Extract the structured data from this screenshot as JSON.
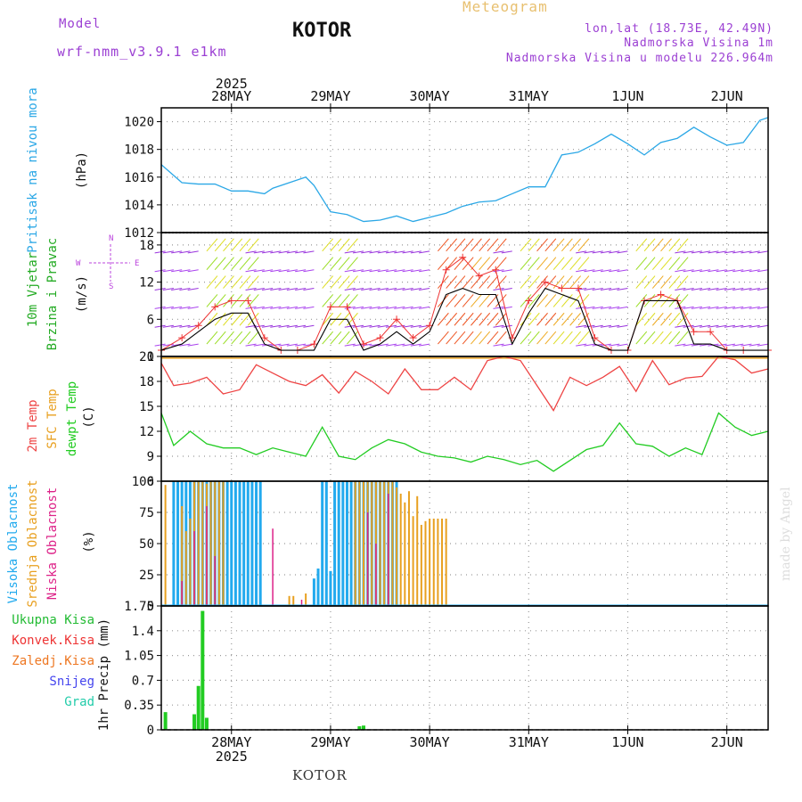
{
  "header": {
    "model_label": "Model",
    "model_name": "wrf-nmm_v3.9.1 e1km",
    "place": "KOTOR",
    "title": "Meteogram",
    "coords": "lon,lat (18.73E, 42.49N)",
    "altitude": "Nadmorska Visina 1m",
    "model_altitude": "Nadmorska Visina u modelu 226.964m"
  },
  "footer": {
    "place": "KOTOR",
    "watermark": "made by Angel"
  },
  "x_axis": {
    "year": "2025",
    "days": [
      "28MAY",
      "29MAY",
      "30MAY",
      "31MAY",
      "1JUN",
      "2JUN"
    ],
    "hours_start_offset": -17,
    "hours_end": 130
  },
  "colors": {
    "pressure": "#2aa7e6",
    "temp": "#ee4444",
    "sfc": "#e8a020",
    "dew": "#22cc22",
    "high": "#22aaee",
    "mid": "#e8a020",
    "low": "#dd2288",
    "precip": "#22cc22",
    "wind_speed": "#000000",
    "gust": "#ee3333",
    "compass": "#bb44dd"
  },
  "panel_labels": {
    "pressure": [
      "Pritisak na nivou mora",
      "(hPa)"
    ],
    "wind": [
      "10m Vjetar",
      "Brzina i Pravac",
      "(m/s)"
    ],
    "compass": [
      "N",
      "W",
      "E",
      "S"
    ],
    "temp": [
      "2m Temp",
      "SFC Temp",
      "dewpt Temp",
      "(C)"
    ],
    "cloud": [
      "Visoka Oblacnost",
      "Srednja Oblacnost",
      "Niska Oblacnost",
      "(%)"
    ],
    "precip_y": "1hr Precip (mm)",
    "precip_legend": [
      "Ukupna Kisa",
      "Konvek.Kisa",
      "Zaledj.Kisa",
      "Snijeg",
      "Grad"
    ]
  },
  "chart_data": [
    {
      "type": "line",
      "name": "pressure",
      "ylim": [
        1012,
        1021
      ],
      "yticks": [
        1012,
        1014,
        1016,
        1018,
        1020
      ],
      "series": [
        {
          "x": [
            -17,
            -12,
            -8,
            -4,
            0,
            4,
            8,
            10,
            14,
            18,
            20,
            24,
            28,
            32,
            36,
            40,
            44,
            48,
            52,
            56,
            60,
            64,
            68,
            72,
            76,
            80,
            84,
            88,
            92,
            96,
            100,
            104,
            108,
            112,
            116,
            120,
            124,
            128,
            130
          ],
          "values": [
            1016.9,
            1015.6,
            1015.5,
            1015.5,
            1015.0,
            1015.0,
            1014.8,
            1015.2,
            1015.6,
            1016.0,
            1015.4,
            1013.5,
            1013.3,
            1012.8,
            1012.9,
            1013.2,
            1012.8,
            1013.1,
            1013.4,
            1013.9,
            1014.2,
            1014.3,
            1014.8,
            1015.3,
            1015.3,
            1017.6,
            1017.8,
            1018.4,
            1019.1,
            1018.4,
            1017.6,
            1018.5,
            1018.8,
            1019.6,
            1018.9,
            1018.3,
            1018.5,
            1020.1,
            1020.3
          ]
        }
      ]
    },
    {
      "type": "line",
      "name": "wind",
      "ylim": [
        0,
        20
      ],
      "yticks": [
        0,
        6,
        12,
        18
      ],
      "series": [
        {
          "name": "speed",
          "x": [
            -17,
            -12,
            -8,
            -4,
            0,
            4,
            8,
            12,
            16,
            20,
            24,
            28,
            32,
            36,
            40,
            44,
            48,
            52,
            56,
            60,
            64,
            68,
            72,
            76,
            80,
            84,
            88,
            92,
            96,
            100,
            104,
            108,
            112,
            116,
            120,
            124,
            130
          ],
          "values": [
            1,
            2,
            4,
            6,
            7,
            7,
            2,
            1,
            1,
            1,
            6,
            6,
            1,
            2,
            4,
            2,
            4,
            10,
            11,
            10,
            10,
            2,
            7,
            11,
            10,
            9,
            2,
            1,
            1,
            9,
            9,
            9,
            2,
            2,
            1,
            1,
            1
          ]
        },
        {
          "name": "gust",
          "x": [
            -17,
            -12,
            -8,
            -4,
            0,
            4,
            8,
            12,
            16,
            20,
            24,
            28,
            32,
            36,
            40,
            44,
            48,
            52,
            56,
            60,
            64,
            68,
            72,
            76,
            80,
            84,
            88,
            92,
            96,
            100,
            104,
            108,
            112,
            116,
            120,
            124,
            130
          ],
          "values": [
            1,
            3,
            5,
            8,
            9,
            9,
            3,
            1,
            1,
            2,
            8,
            8,
            2,
            3,
            6,
            3,
            5,
            14,
            16,
            13,
            14,
            3,
            9,
            12,
            11,
            11,
            3,
            1,
            1,
            9,
            10,
            9,
            4,
            4,
            1,
            1,
            1
          ]
        }
      ]
    },
    {
      "type": "line",
      "name": "temperature",
      "ylim": [
        6,
        21
      ],
      "yticks": [
        6,
        9,
        12,
        15,
        18,
        21
      ],
      "series": [
        {
          "name": "2m",
          "x": [
            -17,
            -14,
            -10,
            -6,
            -2,
            2,
            6,
            10,
            14,
            18,
            22,
            26,
            30,
            34,
            38,
            42,
            46,
            50,
            54,
            58,
            62,
            66,
            70,
            74,
            78,
            82,
            86,
            90,
            94,
            98,
            102,
            106,
            110,
            114,
            118,
            122,
            126,
            130
          ],
          "values": [
            20.2,
            17.5,
            17.8,
            18.5,
            16.5,
            17.0,
            20.0,
            19.0,
            18.0,
            17.5,
            18.8,
            16.6,
            19.2,
            18.0,
            16.5,
            19.5,
            17.0,
            17.0,
            18.5,
            17.0,
            20.5,
            21.0,
            20.5,
            17.5,
            14.5,
            18.5,
            17.5,
            18.5,
            19.8,
            16.8,
            20.5,
            17.6,
            18.4,
            18.6,
            21.0,
            20.6,
            19.0,
            19.5
          ]
        },
        {
          "name": "sfc",
          "x": [
            -17,
            130
          ],
          "values": [
            20.8,
            20.8
          ]
        },
        {
          "name": "dewpt",
          "x": [
            -17,
            -14,
            -10,
            -6,
            -2,
            2,
            6,
            10,
            14,
            18,
            22,
            26,
            30,
            34,
            38,
            42,
            46,
            50,
            54,
            58,
            62,
            66,
            70,
            74,
            78,
            82,
            86,
            90,
            94,
            98,
            102,
            106,
            110,
            114,
            118,
            122,
            126,
            130
          ],
          "values": [
            14.2,
            10.3,
            12.0,
            10.5,
            10.0,
            10.0,
            9.2,
            10.0,
            9.5,
            9.0,
            12.5,
            9.0,
            8.6,
            10.0,
            11.0,
            10.5,
            9.5,
            9.0,
            8.8,
            8.3,
            9.0,
            8.6,
            8.0,
            8.5,
            7.2,
            8.5,
            9.8,
            10.3,
            13.0,
            10.5,
            10.2,
            9.0,
            10.0,
            9.2,
            14.2,
            12.5,
            11.5,
            12.0
          ]
        }
      ]
    },
    {
      "type": "bar",
      "name": "cloud",
      "ylim": [
        0,
        100
      ],
      "yticks": [
        0,
        25,
        50,
        75,
        100
      ],
      "series": [
        {
          "name": "high",
          "x": [
            -14,
            -13,
            -12,
            -11,
            -10,
            -9,
            -8,
            -7,
            -6,
            -5,
            -4,
            -3,
            -2,
            -1,
            0,
            1,
            2,
            3,
            4,
            5,
            6,
            7,
            20,
            21,
            22,
            23,
            24,
            25,
            26,
            27,
            28,
            29,
            30,
            31,
            32,
            33,
            34,
            35,
            36,
            37,
            38,
            39,
            40
          ],
          "values": [
            100,
            100,
            100,
            100,
            100,
            100,
            100,
            100,
            100,
            100,
            100,
            100,
            100,
            100,
            100,
            100,
            100,
            100,
            100,
            100,
            100,
            100,
            22,
            30,
            100,
            100,
            28,
            100,
            100,
            100,
            100,
            100,
            100,
            100,
            100,
            100,
            100,
            100,
            100,
            100,
            100,
            100,
            100
          ]
        },
        {
          "name": "mid",
          "x": [
            -16,
            -12,
            -11,
            -10,
            -9,
            -8,
            -7,
            -6,
            -5,
            -4,
            -3,
            -2,
            14,
            15,
            18,
            30,
            31,
            32,
            33,
            34,
            35,
            36,
            37,
            38,
            39,
            40,
            41,
            42,
            43,
            44,
            45,
            46,
            47,
            48,
            49,
            50,
            51,
            52
          ],
          "values": [
            97,
            80,
            60,
            70,
            100,
            100,
            100,
            98,
            100,
            100,
            100,
            100,
            8,
            8,
            10,
            100,
            100,
            100,
            100,
            100,
            100,
            100,
            100,
            100,
            100,
            95,
            90,
            83,
            92,
            72,
            88,
            65,
            68,
            70,
            70,
            70,
            70,
            70
          ]
        },
        {
          "name": "low",
          "x": [
            -12,
            -9,
            -6,
            -4,
            10,
            17,
            33,
            35,
            38
          ],
          "values": [
            20,
            60,
            80,
            40,
            62,
            5,
            75,
            50,
            90
          ]
        }
      ]
    },
    {
      "type": "bar",
      "name": "precip",
      "ylim": [
        0,
        1.75
      ],
      "yticks": [
        0,
        0.35,
        0.7,
        1.05,
        1.4,
        1.75
      ],
      "series": [
        {
          "name": "Ukupna Kisa",
          "x": [
            -16,
            -9,
            -8,
            -7,
            -6,
            31,
            32
          ],
          "values": [
            0.25,
            0.22,
            0.62,
            1.68,
            0.17,
            0.05,
            0.06
          ]
        }
      ]
    }
  ]
}
